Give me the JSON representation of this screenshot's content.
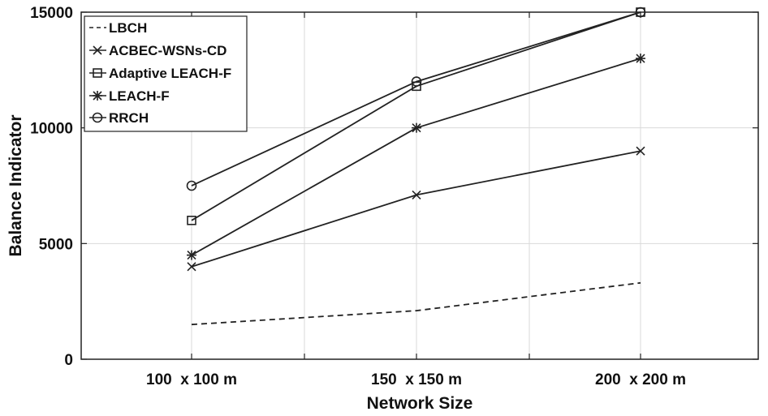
{
  "chart_data": {
    "type": "line",
    "title": "",
    "xlabel": "Network Size",
    "ylabel": "Balance Indicator",
    "categories": [
      "100  x 100 m",
      "150  x 150 m",
      "200  x 200 m"
    ],
    "ylim": [
      0,
      15000
    ],
    "yticks": [
      "0",
      "5000",
      "10000",
      "15000"
    ],
    "grid": true,
    "legend_position": "top-left",
    "series": [
      {
        "name": "LBCH",
        "marker": "none",
        "dash": "dashed",
        "values": [
          1500,
          2100,
          3300
        ]
      },
      {
        "name": "ACBEC-WSNs-CD",
        "marker": "x",
        "dash": "solid",
        "values": [
          4000,
          7100,
          9000
        ]
      },
      {
        "name": "Adaptive LEACH-F",
        "marker": "square",
        "dash": "solid",
        "values": [
          6000,
          11800,
          15000
        ]
      },
      {
        "name": "LEACH-F",
        "marker": "star",
        "dash": "solid",
        "values": [
          4500,
          10000,
          13000
        ]
      },
      {
        "name": "RRCH",
        "marker": "circle",
        "dash": "solid",
        "values": [
          7500,
          12000,
          15000
        ]
      }
    ],
    "colors": {
      "line": "#222222",
      "grid": "#d9d9d9",
      "axis": "#222222"
    }
  }
}
